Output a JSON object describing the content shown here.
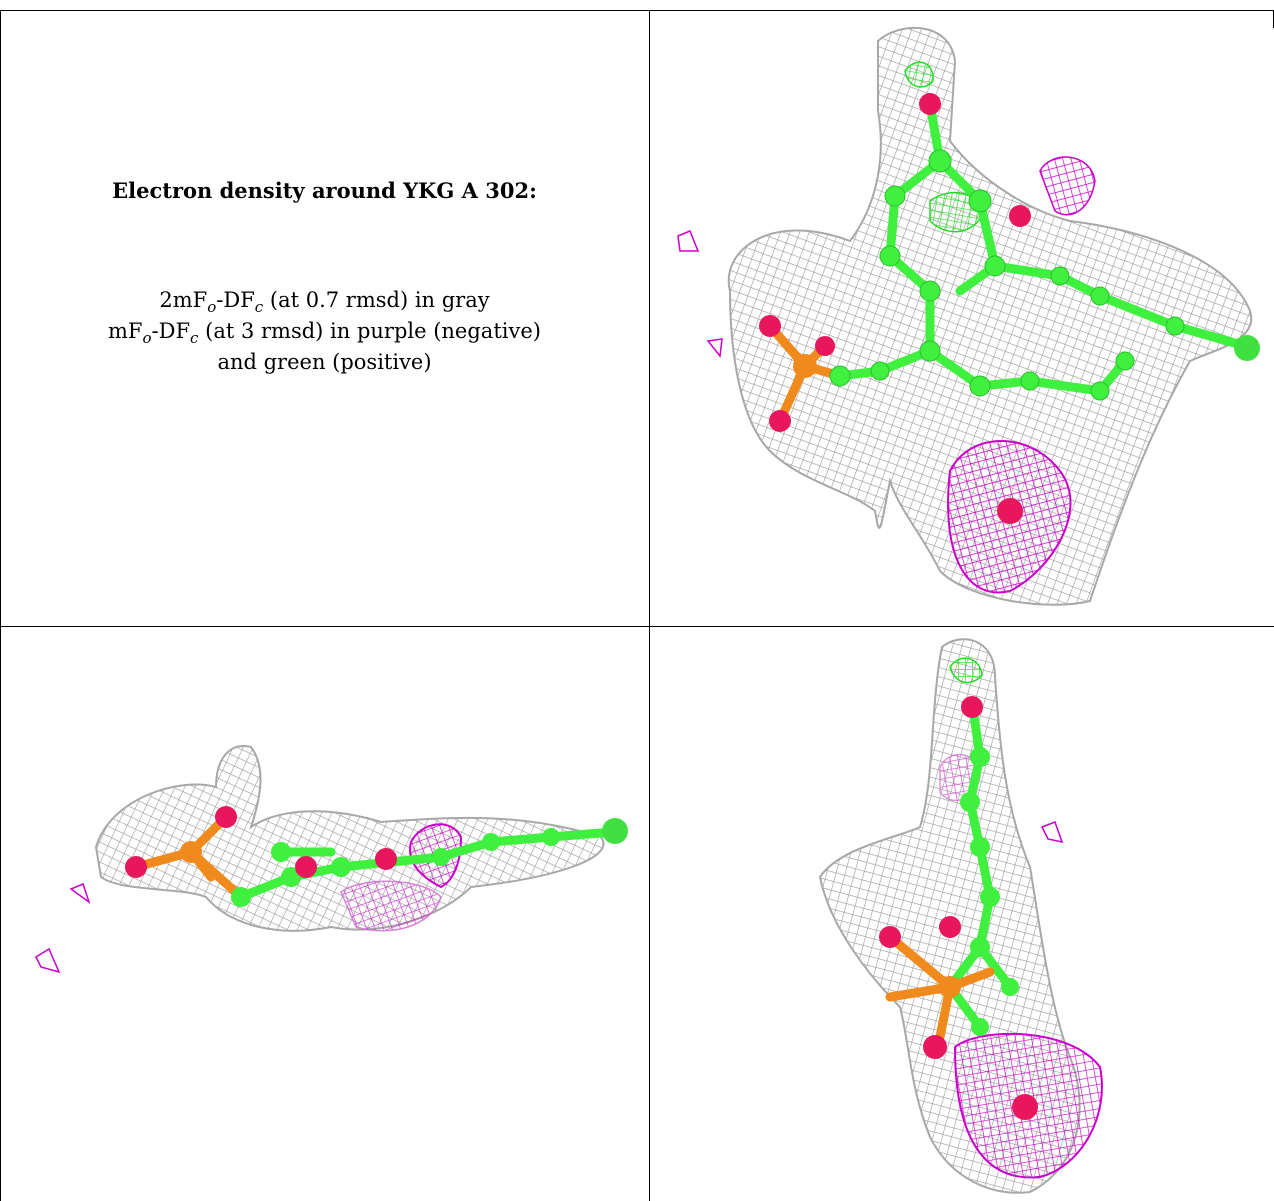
{
  "caption": {
    "title": "Electron density around YKG A 302:",
    "line1_prefix": "2mF",
    "line1_sub1": "o",
    "line1_mid": "-DF",
    "line1_sub2": "c",
    "line1_suffix": " (at 0.7 rmsd) in gray",
    "line2_prefix": "mF",
    "line2_sub1": "o",
    "line2_mid": "-DF",
    "line2_sub2": "c",
    "line2_suffix": " (at 3 rmsd) in purple (negative)",
    "line3": "and green (positive)"
  },
  "colors": {
    "mesh_2fofc": "#9a9a9a",
    "mesh_negative": "#cc00cc",
    "mesh_positive": "#33ee33",
    "carbon": "#3ff03f",
    "oxygen": "#e8175d",
    "phosphorus": "#f08a1c",
    "chlorine": "#40e040",
    "frame": "#000000"
  },
  "views": [
    {
      "name": "top-view"
    },
    {
      "name": "side-view"
    },
    {
      "name": "end-view"
    }
  ]
}
